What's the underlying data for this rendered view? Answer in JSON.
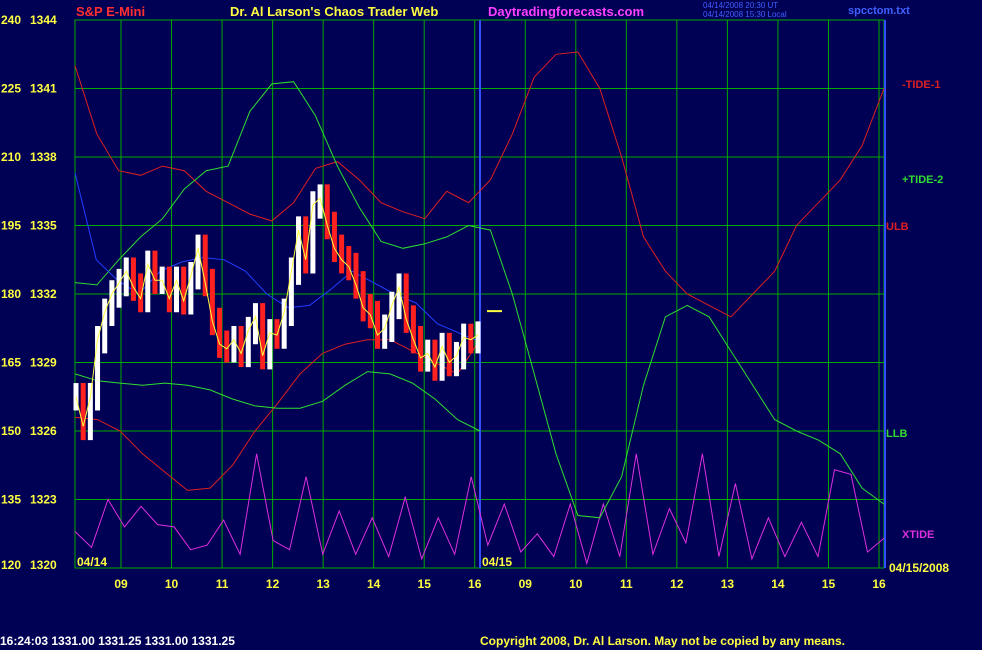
{
  "header": {
    "symbol": "S&P E-Mini",
    "title": "Dr. Al Larson's Chaos Trader Web",
    "site": "Daytradingforecasts.com",
    "timestamp_ut": "04/14/2008 20:30 UT",
    "timestamp_local": "04/14/2008 15:30 Local",
    "file": "spcctom.txt"
  },
  "footer": {
    "quote": "16:24:03  1331.00 1331.25 1331.00 1331.25",
    "copyright": "Copyright 2008, Dr. Al Larson. May not be copied by any means."
  },
  "colors": {
    "background": "#000055",
    "grid": "#00aa00",
    "price_up": "#ffffff",
    "price_down": "#ff2020",
    "tide1": "#dd2020",
    "tide2": "#30dd30",
    "xtide": "#dd30dd",
    "blue_line": "#2040ff",
    "yellow": "#ffff40"
  },
  "chart_data": {
    "type": "line",
    "y_ticks_left": [
      {
        "osc": "240",
        "price": "1344"
      },
      {
        "osc": "225",
        "price": "1341"
      },
      {
        "osc": "210",
        "price": "1338"
      },
      {
        "osc": "195",
        "price": "1335"
      },
      {
        "osc": "180",
        "price": "1332"
      },
      {
        "osc": "165",
        "price": "1329"
      },
      {
        "osc": "150",
        "price": "1326"
      },
      {
        "osc": "135",
        "price": "1323"
      },
      {
        "osc": "120",
        "price": "1320"
      }
    ],
    "ylim": [
      1320,
      1344
    ],
    "x_tick_labels": [
      "09",
      "10",
      "11",
      "12",
      "13",
      "14",
      "15",
      "16",
      "09",
      "10",
      "11",
      "12",
      "13",
      "14",
      "15",
      "16"
    ],
    "date_labels": {
      "start": "04/14",
      "mid": "04/15",
      "end": "04/15/2008"
    },
    "series_labels": {
      "tide1": "-TIDE-1",
      "tide2": "+TIDE-2",
      "ulb": "ULB",
      "llb": "LLB",
      "xtide": "XTIDE"
    },
    "last_price": 1331.25,
    "tide1": [
      1342,
      1339,
      1337.4,
      1337.2,
      1337.6,
      1337.4,
      1336.5,
      1336,
      1335.5,
      1335.2,
      1336,
      1337.5,
      1337.8,
      1337,
      1336,
      1335.6,
      1335.3,
      1336.5,
      1336,
      1337,
      1339,
      1341.5,
      1342.5,
      1342.6,
      1341,
      1338,
      1334.5,
      1333,
      1332,
      1331.5,
      1331,
      1332,
      1333,
      1335,
      1336,
      1337,
      1338.5,
      1341
    ],
    "tide2": [
      1332.5,
      1332.4,
      1333.5,
      1334.5,
      1335.3,
      1336.6,
      1337.4,
      1337.6,
      1340,
      1341.2,
      1341.3,
      1339.8,
      1337.6,
      1335.8,
      1334.3,
      1334,
      1334.2,
      1334.5,
      1335,
      1334.8,
      1332,
      1328.5,
      1325,
      1322.3,
      1322.2,
      1324,
      1328,
      1331,
      1331.5,
      1331,
      1329.5,
      1328,
      1326.5,
      1326,
      1325.6,
      1325,
      1323.5,
      1322.8
    ],
    "ulb": [
      1326.6,
      1326.5,
      1326,
      1325,
      1324.2,
      1323.4,
      1323.5,
      1324.5,
      1326,
      1327.2,
      1328.5,
      1329.4,
      1329.8,
      1330,
      1330,
      1329.5,
      1329,
      1328.5,
      1330
    ],
    "llb": [
      1328.5,
      1328.2,
      1328.1,
      1328,
      1328.1,
      1328,
      1327.8,
      1327.4,
      1327.1,
      1327,
      1327,
      1327.3,
      1328,
      1328.6,
      1328.5,
      1328.1,
      1327.4,
      1326.5,
      1326
    ],
    "blue": [
      1337.3,
      1333.5,
      1332.6,
      1332,
      1333,
      1333.4,
      1333.6,
      1333.5,
      1333,
      1332,
      1331.4,
      1331.5,
      1332.2,
      1333,
      1332.5,
      1332,
      1331.6,
      1330.7,
      1330.3,
      1329.9
    ],
    "xtide": [
      1321.6,
      1320.9,
      1323,
      1321.8,
      1322.7,
      1321.9,
      1321.8,
      1320.8,
      1321,
      1322.1,
      1320.6,
      1325,
      1321.2,
      1320.8,
      1324,
      1320.6,
      1322.5,
      1320.6,
      1322.2,
      1320.5,
      1323.1,
      1320.4,
      1322.2,
      1320.6,
      1324,
      1321,
      1322.8,
      1320.7,
      1321.5,
      1320.5,
      1322.8,
      1320.2,
      1322.8,
      1320.5,
      1325,
      1320.6,
      1322.6,
      1321.1,
      1325,
      1320.5,
      1323.7,
      1320.4,
      1322.2,
      1320.5,
      1322,
      1320.5,
      1324.3,
      1324.1,
      1320.7,
      1321.3
    ],
    "price_closes": [
      1327.5,
      1326.2,
      1327.5,
      1330,
      1331.2,
      1332,
      1332.5,
      1333,
      1332.3,
      1331.8,
      1333.3,
      1332.6,
      1332.6,
      1331.8,
      1332.6,
      1331.7,
      1332.8,
      1334,
      1332.5,
      1330.8,
      1329.8,
      1329.6,
      1330,
      1329.4,
      1330.4,
      1331,
      1329.3,
      1330.3,
      1330.2,
      1331.2,
      1333,
      1334.8,
      1333.5,
      1335.9,
      1336.2,
      1335,
      1334,
      1333.5,
      1333.2,
      1332.4,
      1331.4,
      1331.1,
      1330.2,
      1330.5,
      1331.5,
      1332.3,
      1330.9,
      1330,
      1329.2,
      1329.4,
      1328.8,
      1329.7,
      1329,
      1329.3,
      1330.1,
      1330,
      1330.2
    ]
  }
}
